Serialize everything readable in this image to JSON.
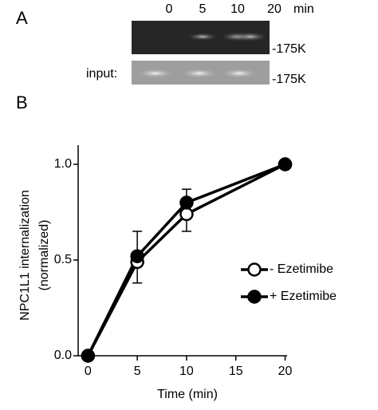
{
  "panels": [
    "A",
    "B"
  ],
  "blot": {
    "lanes": [
      "0",
      "5",
      "10",
      "20"
    ],
    "unit": "min",
    "marker": "-175K",
    "input_label": "input:",
    "input_marker": "-175K"
  },
  "chart_data": {
    "type": "line",
    "x": [
      0,
      5,
      10,
      20
    ],
    "series": [
      {
        "name": "- Ezetimibe",
        "color": "#ffffff",
        "values": [
          0,
          0.49,
          0.74,
          1.0
        ],
        "errors": [
          null,
          0.11,
          0.09,
          null
        ]
      },
      {
        "name": "+ Ezetimibe",
        "color": "#000000",
        "values": [
          0,
          0.52,
          0.8,
          1.0
        ],
        "errors": [
          null,
          0.13,
          0.07,
          null
        ]
      }
    ],
    "xlabel": "Time (min)",
    "ylabel": [
      "NPC1L1 internalization",
      "(normalized)"
    ],
    "xlim": [
      -1,
      20.2
    ],
    "ylim": [
      0,
      1.1
    ],
    "xticks": [
      0,
      5,
      10,
      15,
      20
    ],
    "yticks": [
      {
        "value": 0,
        "label": "0.0"
      },
      0.5,
      {
        "value": 1.0,
        "label": "1.0"
      }
    ],
    "legend": "right"
  }
}
